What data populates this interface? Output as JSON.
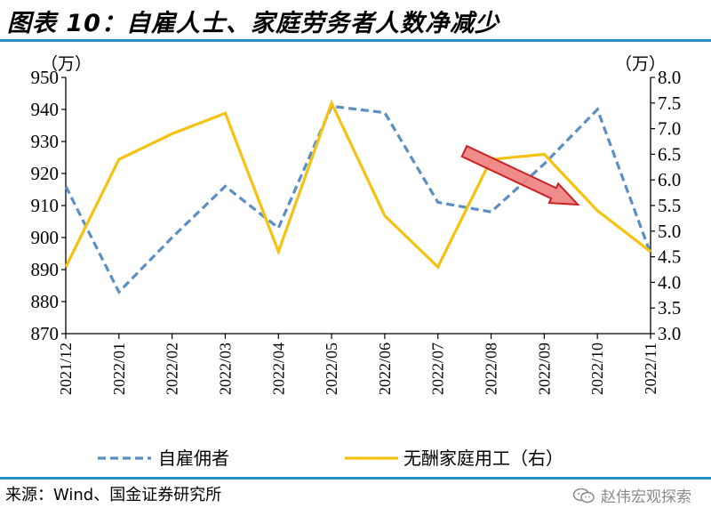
{
  "title": "图表 10：自雇人士、家庭劳务者人数净减少",
  "source": "来源：Wind、国金证券研究所",
  "watermark": "赵伟宏观探索",
  "colors": {
    "rule": "#1f8fc6",
    "series_left": "#5b8ec4",
    "series_right": "#f5c211",
    "arrow_fill": "#f07f7f",
    "arrow_stroke": "#cc1f1f"
  },
  "chart_data": {
    "type": "line",
    "categories": [
      "2021/12",
      "2022/01",
      "2022/02",
      "2022/03",
      "2022/04",
      "2022/05",
      "2022/06",
      "2022/07",
      "2022/08",
      "2022/09",
      "2022/10",
      "2022/11"
    ],
    "y_left": {
      "unit": "（万）",
      "range": [
        870,
        950
      ],
      "ticks": [
        "870",
        "880",
        "890",
        "900",
        "910",
        "920",
        "930",
        "940",
        "950"
      ]
    },
    "y_right": {
      "unit": "（万）",
      "range": [
        3.0,
        8.0
      ],
      "ticks": [
        "3.0",
        "3.5",
        "4.0",
        "4.5",
        "5.0",
        "5.5",
        "6.0",
        "6.5",
        "7.0",
        "7.5",
        "8.0"
      ]
    },
    "series": [
      {
        "name": "自雇佣者",
        "axis": "left",
        "style": "dashed",
        "values": [
          916,
          883,
          900,
          916,
          903,
          941,
          939,
          911,
          908,
          923,
          940,
          895
        ]
      },
      {
        "name": "无酬家庭用工（右）",
        "axis": "right",
        "style": "solid",
        "values": [
          4.3,
          6.4,
          6.9,
          7.3,
          4.6,
          7.5,
          5.3,
          4.3,
          6.4,
          6.5,
          5.4,
          4.6
        ]
      }
    ],
    "annotations": [
      {
        "type": "arrow",
        "direction": "down-right",
        "from_category": "2022/08",
        "to_category": "2022/10"
      }
    ]
  }
}
